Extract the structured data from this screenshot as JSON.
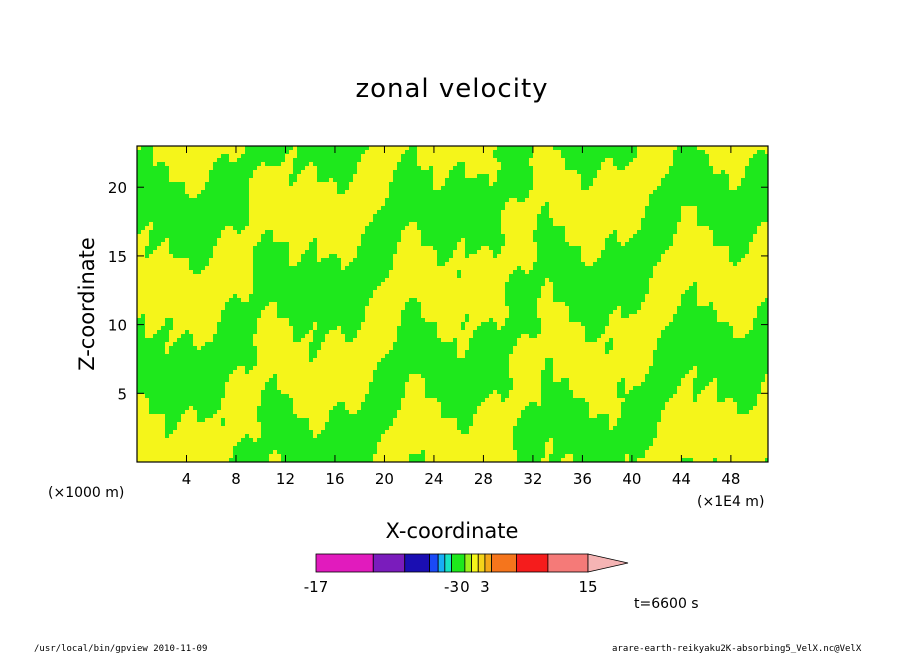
{
  "chart_data": {
    "type": "heatmap",
    "title": "zonal velocity",
    "xlabel": "X-coordinate",
    "ylabel": "Z-coordinate",
    "x_unit_left": "(×1000 m)",
    "x_unit_right": "(×1E4 m)",
    "xlim": [
      0,
      51
    ],
    "ylim": [
      0,
      23
    ],
    "x_ticks": [
      4,
      8,
      12,
      16,
      20,
      24,
      28,
      32,
      36,
      40,
      44,
      48
    ],
    "x_tick_labels": [
      "4",
      "8",
      "12",
      "16",
      "20",
      "24",
      "28",
      "32",
      "36",
      "40",
      "44",
      "48"
    ],
    "y_ticks": [
      5,
      10,
      15,
      20
    ],
    "y_tick_labels": [
      "5",
      "10",
      "15",
      "20"
    ],
    "colorbar": {
      "segments": [
        {
          "from": -17,
          "to": -11,
          "color": "#e11bbd"
        },
        {
          "from": -11,
          "to": -8,
          "color": "#7a1cbc"
        },
        {
          "from": -8,
          "to": -6,
          "color": "#1a0eb2"
        },
        {
          "from": -6,
          "to": -5,
          "color": "#1a49f6"
        },
        {
          "from": -5,
          "to": -4,
          "color": "#18aef5"
        },
        {
          "from": -4,
          "to": -3,
          "color": "#17e3c3"
        },
        {
          "from": -3,
          "to": 0,
          "color": "#1ee81c"
        },
        {
          "from": 0,
          "to": 1,
          "color": "#9ef01c"
        },
        {
          "from": 1,
          "to": 2,
          "color": "#f5f51a"
        },
        {
          "from": 2,
          "to": 3,
          "color": "#f5d41a"
        },
        {
          "from": 3,
          "to": 4,
          "color": "#f5a81a"
        },
        {
          "from": 4,
          "to": 7,
          "color": "#f5751c"
        },
        {
          "from": 7,
          "to": 11,
          "color": "#f51c1c"
        },
        {
          "from": 11,
          "to": 15,
          "color": "#f57a78"
        }
      ],
      "overflow_color": "#f5b4b4",
      "labels": [
        "-17",
        "-3",
        "0",
        "3",
        "15"
      ],
      "label_values": [
        -17,
        -3,
        0,
        3,
        15
      ]
    },
    "field_colors": {
      "negative": "#1ee81c",
      "positive": "#f5f51a"
    },
    "time_label": "t=6600 s"
  },
  "footer": {
    "left": "/usr/local/bin/gpview  2010-11-09",
    "right": "arare-earth-reikyaku2K-absorbing5_VelX.nc@VelX"
  }
}
